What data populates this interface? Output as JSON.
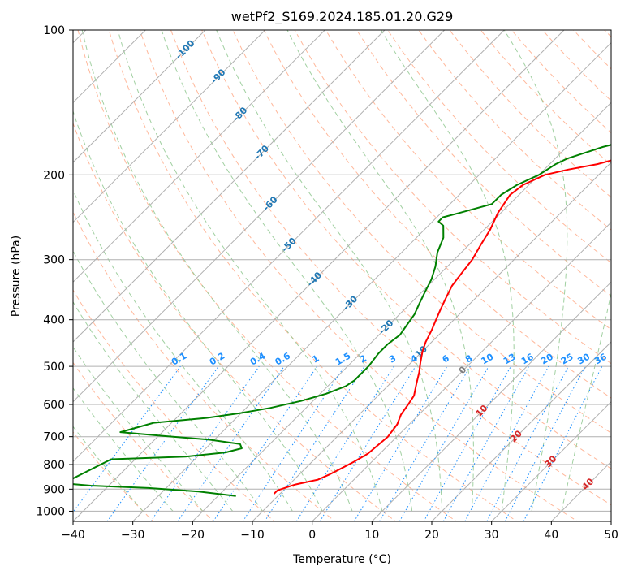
{
  "chart_data": {
    "type": "line",
    "title": "wetPf2_S169.2024.185.01.20.G29",
    "xlabel": "Temperature (°C)",
    "ylabel": "Pressure (hPa)",
    "xlim": [
      -40,
      50
    ],
    "ylim": [
      1050,
      100
    ],
    "y_scale": "log",
    "x_ticks": [
      -40,
      -30,
      -20,
      -10,
      0,
      10,
      20,
      30,
      40,
      50
    ],
    "y_ticks": [
      1000,
      900,
      800,
      700,
      600,
      500,
      400,
      300,
      200,
      100
    ],
    "grid": true,
    "skew_diagram": true,
    "series": [
      {
        "color": "#ff0000",
        "style": "solid",
        "points": [
          [
            -11,
            920
          ],
          [
            -11,
            905
          ],
          [
            -9,
            880
          ],
          [
            -6,
            860
          ],
          [
            -5,
            840
          ],
          [
            -4,
            815
          ],
          [
            -3,
            790
          ],
          [
            -2,
            760
          ],
          [
            -1.5,
            700
          ],
          [
            -2,
            660
          ],
          [
            -3,
            630
          ],
          [
            -3.5,
            600
          ],
          [
            -4,
            575
          ],
          [
            -5.5,
            545
          ],
          [
            -7,
            515
          ],
          [
            -8.5,
            490
          ],
          [
            -10,
            465
          ],
          [
            -11,
            445
          ],
          [
            -12,
            420
          ],
          [
            -13,
            400
          ],
          [
            -14,
            380
          ],
          [
            -15,
            360
          ],
          [
            -16,
            340
          ],
          [
            -16.5,
            320
          ],
          [
            -17,
            300
          ],
          [
            -18,
            280
          ],
          [
            -19,
            260
          ],
          [
            -20.5,
            240
          ],
          [
            -21.5,
            220
          ],
          [
            -21,
            210
          ],
          [
            -19,
            200
          ],
          [
            -16,
            195
          ],
          [
            -12,
            190
          ],
          [
            -7,
            180
          ],
          [
            -5,
            170
          ],
          [
            -4.5,
            160
          ],
          [
            -4,
            150
          ],
          [
            -3,
            140
          ],
          [
            -2,
            130
          ],
          [
            0,
            120
          ],
          [
            3,
            110
          ],
          [
            6,
            100
          ]
        ]
      },
      {
        "color": "#008000",
        "style": "solid",
        "points": [
          [
            -17,
            930
          ],
          [
            -24,
            910
          ],
          [
            -33,
            895
          ],
          [
            -43,
            885
          ],
          [
            -48,
            875
          ],
          [
            -44,
            780
          ],
          [
            -32,
            770
          ],
          [
            -26,
            755
          ],
          [
            -24,
            740
          ],
          [
            -25,
            725
          ],
          [
            -31,
            710
          ],
          [
            -39,
            698
          ],
          [
            -47,
            685
          ],
          [
            -43,
            655
          ],
          [
            -35,
            640
          ],
          [
            -30,
            625
          ],
          [
            -26,
            610
          ],
          [
            -22,
            590
          ],
          [
            -19,
            570
          ],
          [
            -17,
            550
          ],
          [
            -16.5,
            535
          ],
          [
            -16.5,
            500
          ],
          [
            -17,
            470
          ],
          [
            -17,
            450
          ],
          [
            -16.5,
            430
          ],
          [
            -17,
            410
          ],
          [
            -17.5,
            390
          ],
          [
            -18.5,
            370
          ],
          [
            -19.5,
            350
          ],
          [
            -20.5,
            330
          ],
          [
            -22,
            310
          ],
          [
            -24,
            290
          ],
          [
            -25.5,
            270
          ],
          [
            -27.5,
            255
          ],
          [
            -29,
            250
          ],
          [
            -29,
            245
          ],
          [
            -27,
            240
          ],
          [
            -25,
            235
          ],
          [
            -23,
            230
          ],
          [
            -23,
            220
          ],
          [
            -22,
            210
          ],
          [
            -20,
            200
          ],
          [
            -19,
            190
          ],
          [
            -18,
            185
          ],
          [
            -16,
            180
          ],
          [
            -14,
            175
          ],
          [
            -11,
            170
          ],
          [
            -9,
            165
          ],
          [
            -8,
            160
          ],
          [
            -7,
            150
          ],
          [
            -6,
            140
          ],
          [
            -4,
            130
          ],
          [
            -1,
            120
          ],
          [
            1,
            110
          ],
          [
            3,
            100
          ]
        ]
      }
    ],
    "isotherm_labels": [
      "-100",
      "-90",
      "-80",
      "-70",
      "-60",
      "-50",
      "-40",
      "-30",
      "-20",
      "-10",
      "0",
      "10",
      "20",
      "30",
      "40"
    ],
    "mixing_ratio_labels": [
      "0.1",
      "0.2",
      "0.4",
      "0.6",
      "1",
      "1.5",
      "2",
      "3",
      "4",
      "6",
      "8",
      "10",
      "13",
      "16",
      "20",
      "25",
      "30",
      "36"
    ],
    "colors": {
      "isotherm": "#1f77b4",
      "isotherm_warm": "#d62728",
      "isotherm_zero": "#7f7f7f",
      "mixing_ratio": "#1e90ff",
      "dry_adiabat": "#ffa07a",
      "moist_adiabat": "#90c890",
      "gridline": "#b0b0b0",
      "temperature": "#ff0000",
      "dewpoint": "#008000"
    }
  }
}
